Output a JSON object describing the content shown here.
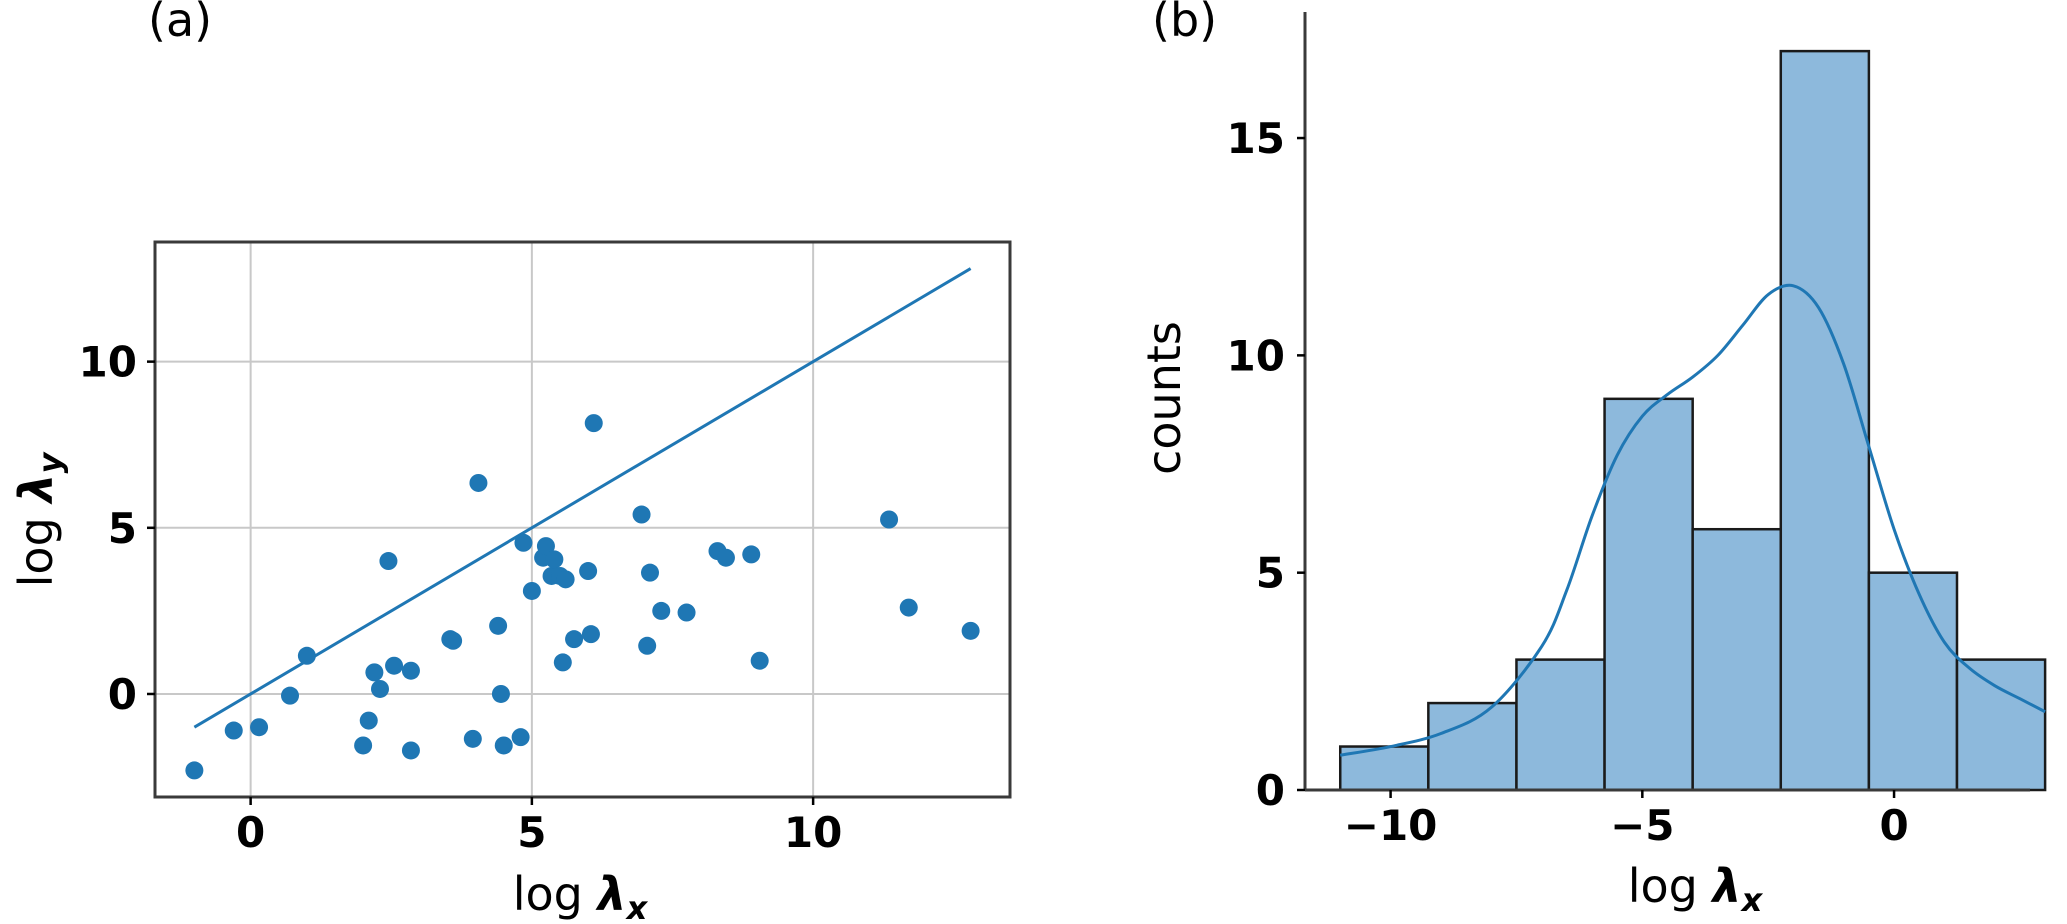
{
  "colors": {
    "series": "#1f77b4",
    "bar_fill": "#8db9dc",
    "bar_edge": "#1a1a1a",
    "grid": "#c8c8c8",
    "frame": "#3a3a3a"
  },
  "chart_data": [
    {
      "type": "scatter",
      "panel_label": "(a)",
      "xlabel_prefix": "log ",
      "xlabel_symbol": "λ",
      "xlabel_sub": "x",
      "ylabel_prefix": "log ",
      "ylabel_symbol": "λ",
      "ylabel_sub": "y",
      "xlim": [
        -1.7,
        13.5
      ],
      "ylim": [
        -3.1,
        13.6
      ],
      "grid": true,
      "xticks": [
        0,
        5,
        10
      ],
      "yticks": [
        0,
        5,
        10
      ],
      "xtick_labels": [
        "0",
        "5",
        "10"
      ],
      "ytick_labels": [
        "0",
        "5",
        "10"
      ],
      "line": {
        "x": [
          -1.0,
          12.8
        ],
        "y": [
          -1.0,
          12.8
        ]
      },
      "points": [
        {
          "x": -1.0,
          "y": -2.3
        },
        {
          "x": -0.3,
          "y": -1.1
        },
        {
          "x": 0.15,
          "y": -1.0
        },
        {
          "x": 0.7,
          "y": -0.05
        },
        {
          "x": 1.0,
          "y": 1.15
        },
        {
          "x": 2.0,
          "y": -1.55
        },
        {
          "x": 2.1,
          "y": -0.8
        },
        {
          "x": 2.2,
          "y": 0.65
        },
        {
          "x": 2.3,
          "y": 0.15
        },
        {
          "x": 2.45,
          "y": 4.0
        },
        {
          "x": 2.55,
          "y": 0.85
        },
        {
          "x": 2.85,
          "y": 0.7
        },
        {
          "x": 2.85,
          "y": -1.7
        },
        {
          "x": 3.55,
          "y": 1.65
        },
        {
          "x": 3.6,
          "y": 1.6
        },
        {
          "x": 3.95,
          "y": -1.35
        },
        {
          "x": 4.05,
          "y": 6.35
        },
        {
          "x": 4.4,
          "y": 2.05
        },
        {
          "x": 4.45,
          "y": 0.0
        },
        {
          "x": 4.5,
          "y": -1.55
        },
        {
          "x": 4.8,
          "y": -1.3
        },
        {
          "x": 4.85,
          "y": 4.55
        },
        {
          "x": 5.0,
          "y": 3.1
        },
        {
          "x": 5.2,
          "y": 4.1
        },
        {
          "x": 5.25,
          "y": 4.45
        },
        {
          "x": 5.35,
          "y": 3.55
        },
        {
          "x": 5.4,
          "y": 4.05
        },
        {
          "x": 5.5,
          "y": 3.55
        },
        {
          "x": 5.55,
          "y": 0.95
        },
        {
          "x": 5.6,
          "y": 3.45
        },
        {
          "x": 5.75,
          "y": 1.65
        },
        {
          "x": 6.0,
          "y": 3.7
        },
        {
          "x": 6.05,
          "y": 1.8
        },
        {
          "x": 6.1,
          "y": 8.15
        },
        {
          "x": 6.95,
          "y": 5.4
        },
        {
          "x": 7.05,
          "y": 1.45
        },
        {
          "x": 7.1,
          "y": 3.65
        },
        {
          "x": 7.3,
          "y": 2.5
        },
        {
          "x": 7.75,
          "y": 2.45
        },
        {
          "x": 8.3,
          "y": 4.3
        },
        {
          "x": 8.45,
          "y": 4.1
        },
        {
          "x": 8.9,
          "y": 4.2
        },
        {
          "x": 9.05,
          "y": 1.0
        },
        {
          "x": 11.35,
          "y": 5.25
        },
        {
          "x": 11.7,
          "y": 2.6
        },
        {
          "x": 12.8,
          "y": 1.9
        }
      ]
    },
    {
      "type": "bar",
      "subtype": "histogram_with_kde",
      "panel_label": "(b)",
      "xlabel_prefix": "log ",
      "xlabel_symbol": "λ",
      "xlabel_sub": "x",
      "ylabel": "counts",
      "xlim": [
        -11.7,
        2.7
      ],
      "ylim": [
        0,
        17.9
      ],
      "grid": false,
      "xticks": [
        -10,
        -5,
        0
      ],
      "xtick_labels": [
        "−10",
        "−5",
        "0"
      ],
      "yticks": [
        0,
        5,
        10,
        15
      ],
      "ytick_labels": [
        "0",
        "5",
        "10",
        "15"
      ],
      "bin_edges": [
        -11.0,
        -9.25,
        -7.5,
        -5.75,
        -4.0,
        -2.25,
        -0.5,
        1.25,
        3.0
      ],
      "values": [
        1,
        2,
        3,
        9,
        6,
        17,
        5,
        3
      ],
      "kde": {
        "x": [
          -11.0,
          -10.0,
          -9.0,
          -8.0,
          -7.0,
          -6.5,
          -6.0,
          -5.5,
          -5.0,
          -4.5,
          -4.0,
          -3.5,
          -3.0,
          -2.5,
          -2.0,
          -1.5,
          -1.0,
          -0.5,
          0.0,
          0.5,
          1.0,
          1.5,
          2.0,
          2.5,
          3.0
        ],
        "y": [
          0.8,
          1.0,
          1.3,
          1.9,
          3.3,
          4.6,
          6.3,
          7.7,
          8.6,
          9.1,
          9.5,
          10.0,
          10.7,
          11.4,
          11.6,
          11.1,
          9.8,
          7.9,
          6.0,
          4.5,
          3.4,
          2.8,
          2.4,
          2.1,
          1.8
        ]
      }
    }
  ]
}
